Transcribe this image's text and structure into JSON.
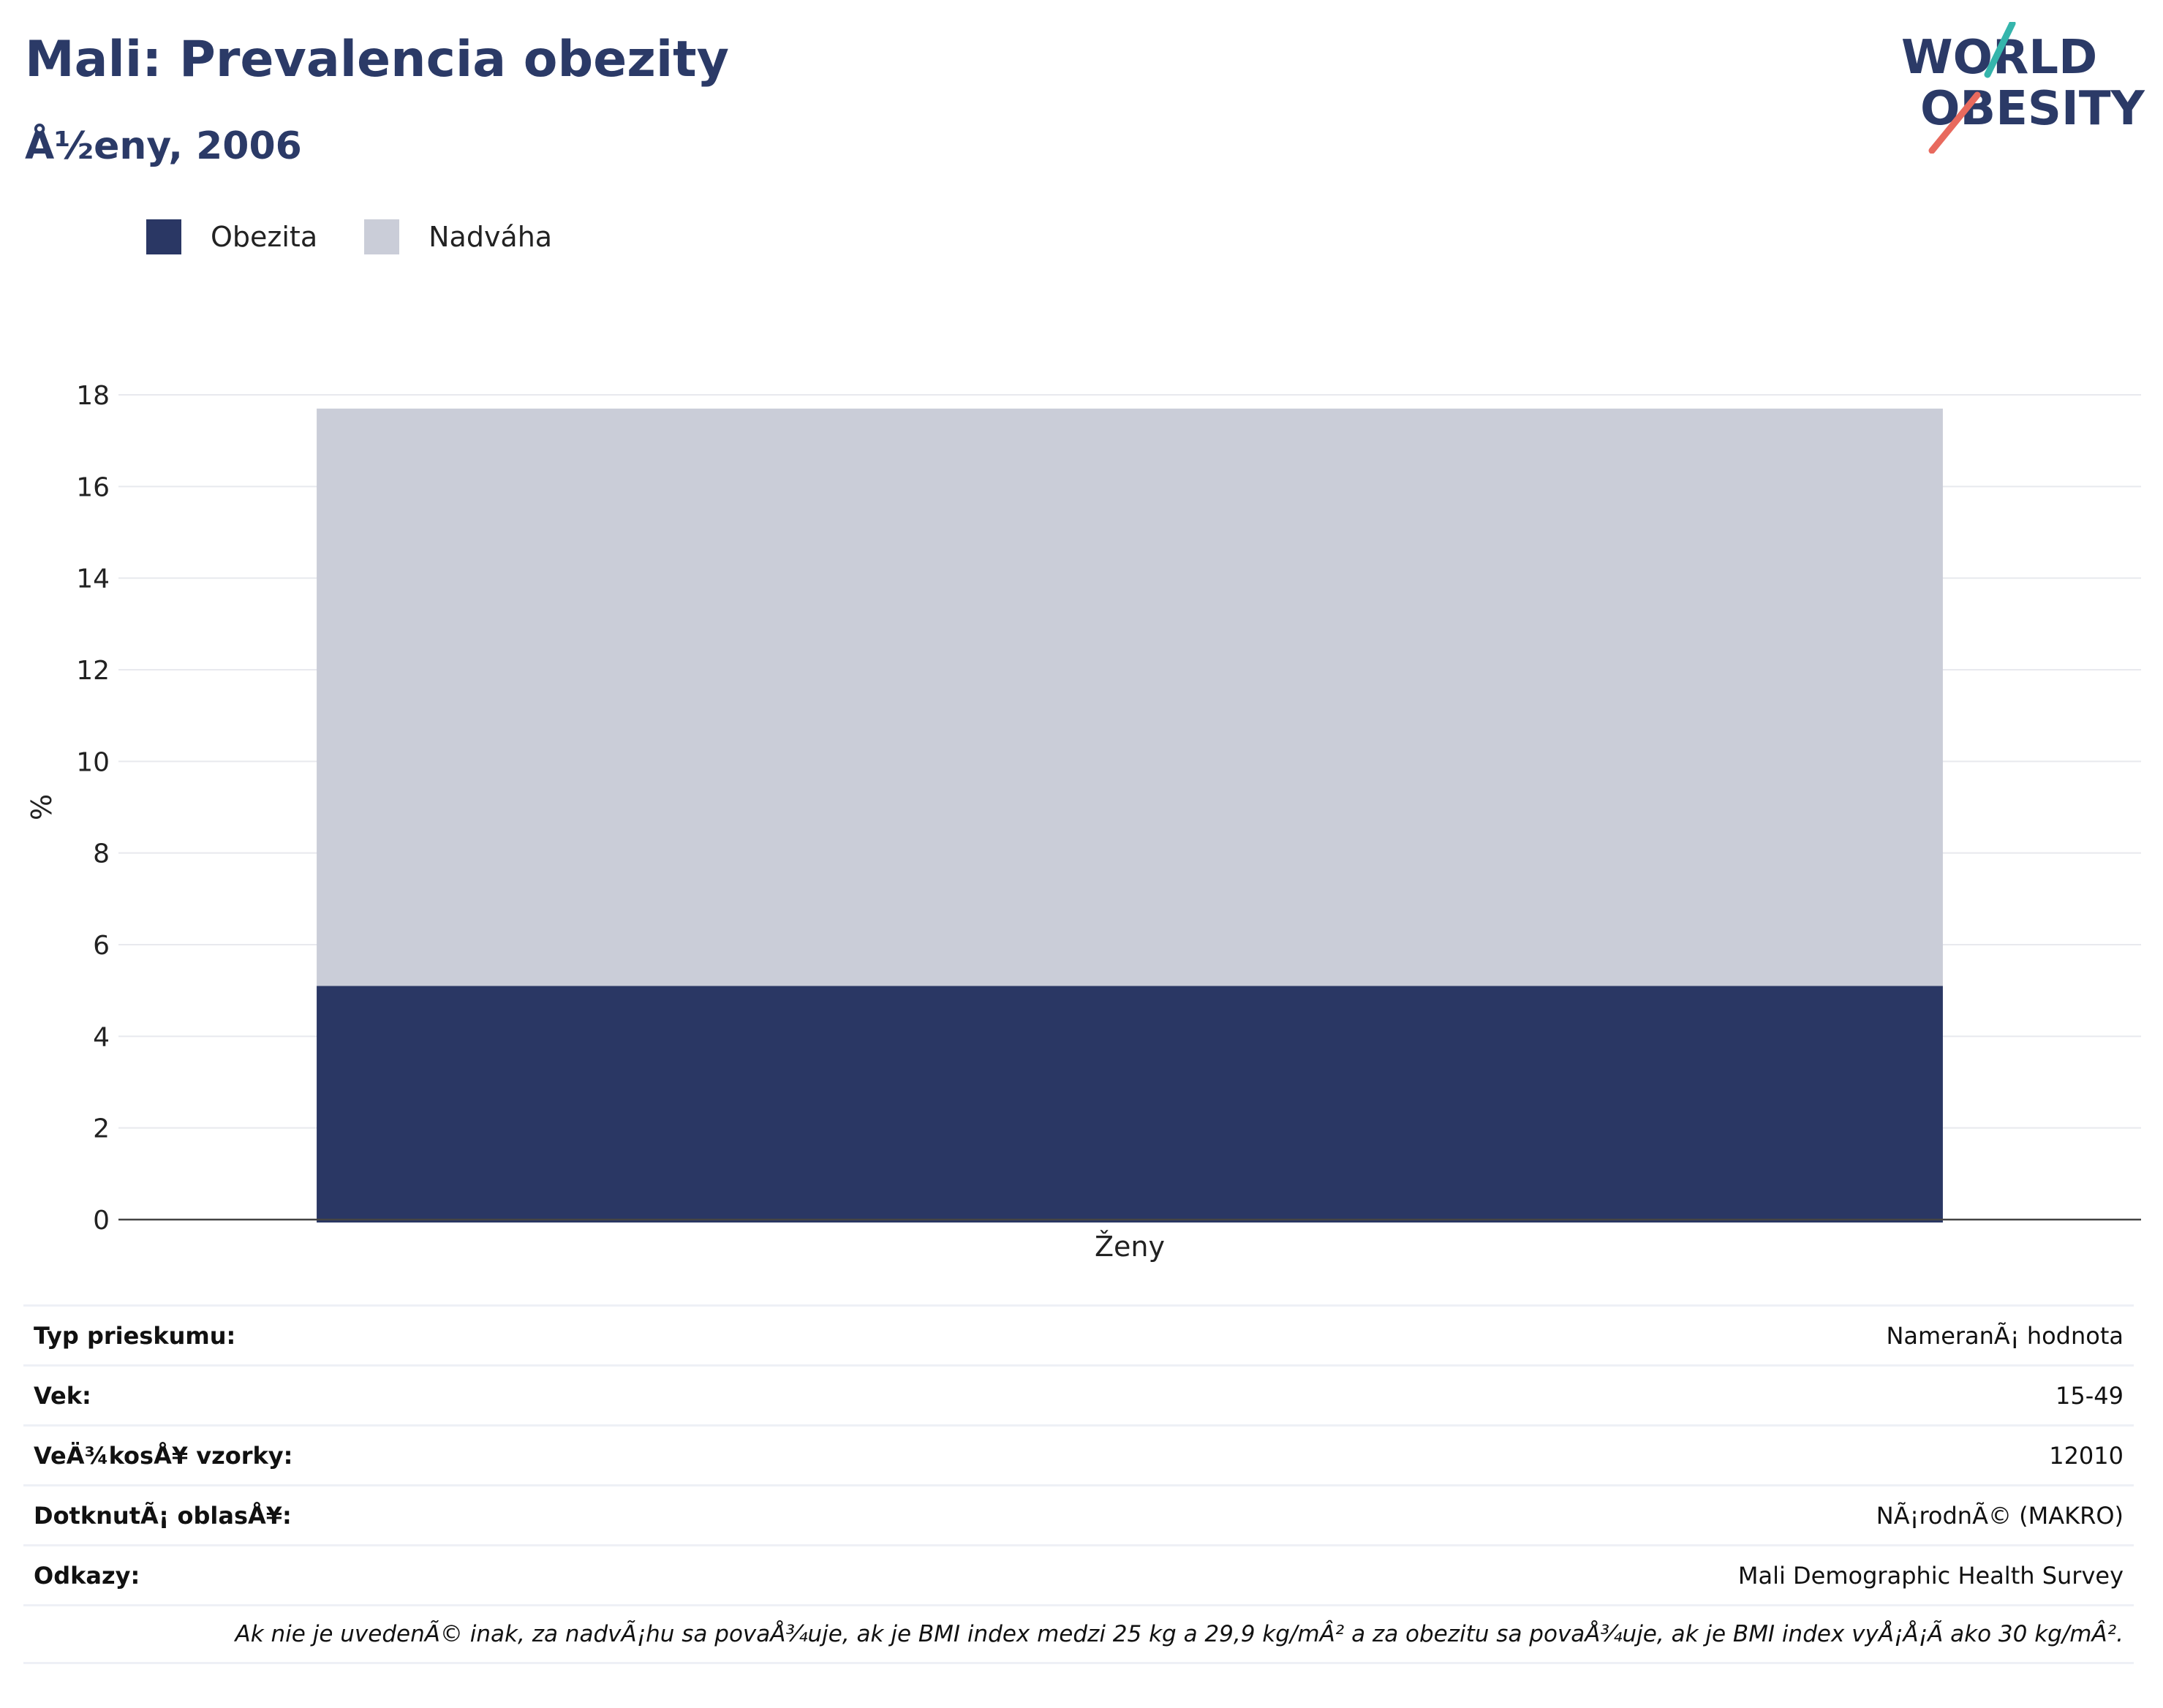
{
  "header": {
    "title": "Mali: Prevalencia obezity",
    "subtitle": "Å½eny, 2006"
  },
  "logo": {
    "line1": "WORLD",
    "line2": "OBESITY"
  },
  "legend": [
    {
      "label": "Obezita",
      "color": "#2a3764"
    },
    {
      "label": "Nadváha",
      "color": "#cacdd8"
    }
  ],
  "chart_data": {
    "type": "bar",
    "stacked": true,
    "categories": [
      "Ženy"
    ],
    "series": [
      {
        "name": "Obezita",
        "values": [
          5.1
        ],
        "color": "#2a3764"
      },
      {
        "name": "Nadváha",
        "values": [
          12.6
        ],
        "color": "#cacdd8"
      }
    ],
    "ylabel": "%",
    "ylim": [
      0,
      18
    ],
    "yticks": [
      0,
      2,
      4,
      6,
      8,
      10,
      12,
      14,
      16,
      18
    ],
    "grid": true,
    "legend_position": "top-left"
  },
  "info": {
    "rows": [
      {
        "label": "Typ prieskumu:",
        "value": "NameranÃ¡ hodnota"
      },
      {
        "label": "Vek:",
        "value": "15-49"
      },
      {
        "label": "VeÄ¾kosÅ¥ vzorky:",
        "value": "12010"
      },
      {
        "label": "DotknutÃ¡ oblasÅ¥:",
        "value": "NÃ¡rodnÃ© (MAKRO)"
      },
      {
        "label": "Odkazy:",
        "value": "Mali Demographic Health Survey"
      }
    ],
    "note": "Ak nie je uvedenÃ© inak, za nadvÃ¡hu sa povaÅ¾uje, ak je BMI index medzi 25 kg a 29,9 kg/mÂ² a za obezitu sa povaÅ¾uje, ak je BMI index vyÅ¡Å¡Ã ako 30 kg/mÂ²."
  }
}
